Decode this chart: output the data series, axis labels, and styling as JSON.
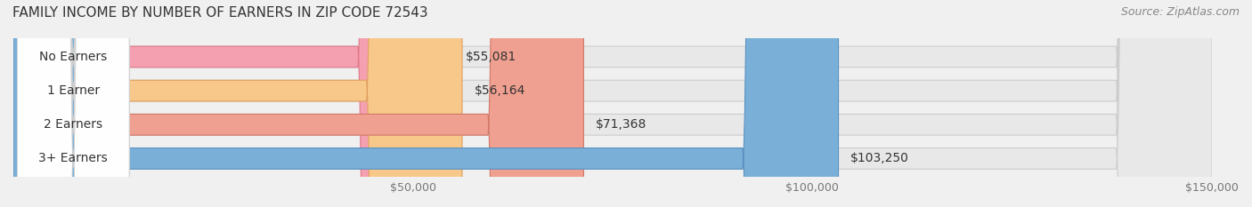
{
  "title": "FAMILY INCOME BY NUMBER OF EARNERS IN ZIP CODE 72543",
  "source": "Source: ZipAtlas.com",
  "categories": [
    "No Earners",
    "1 Earner",
    "2 Earners",
    "3+ Earners"
  ],
  "values": [
    55081,
    56164,
    71368,
    103250
  ],
  "labels": [
    "$55,081",
    "$56,164",
    "$71,368",
    "$103,250"
  ],
  "bar_colors": [
    "#f4a0b0",
    "#f8c88a",
    "#f0a090",
    "#7ab0d8"
  ],
  "bar_edge_colors": [
    "#e07888",
    "#e0a060",
    "#d07868",
    "#5890c0"
  ],
  "bg_color": "#f0f0f0",
  "bar_bg_color": "#e8e8e8",
  "xlim": [
    0,
    150000
  ],
  "xticks": [
    50000,
    100000,
    150000
  ],
  "xticklabels": [
    "$50,000",
    "$100,000",
    "$150,000"
  ],
  "title_fontsize": 11,
  "source_fontsize": 9,
  "label_fontsize": 10,
  "category_fontsize": 10,
  "bar_height": 0.62,
  "figsize": [
    14.06,
    2.33
  ],
  "dpi": 100
}
